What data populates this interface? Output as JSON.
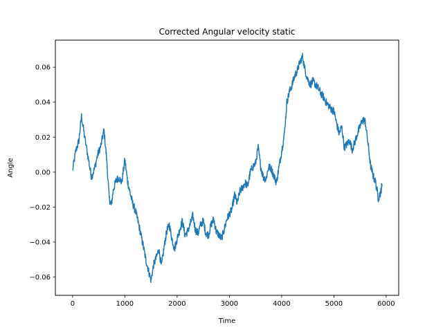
{
  "chart_data": {
    "type": "line",
    "title": "Corrected Angular velocity static",
    "xlabel": "Time",
    "ylabel": "Angle",
    "xlim": [
      -330,
      6240
    ],
    "ylim": [
      -0.0705,
      0.0755
    ],
    "grid": false,
    "legend": "none",
    "x_ticks": [
      0,
      1000,
      2000,
      3000,
      4000,
      5000,
      6000
    ],
    "x_tick_labels": [
      "0",
      "1000",
      "2000",
      "3000",
      "4000",
      "5000",
      "6000"
    ],
    "y_ticks": [
      -0.06,
      -0.04,
      -0.02,
      0.0,
      0.02,
      0.04,
      0.06
    ],
    "y_tick_labels": [
      "−0.06",
      "−0.04",
      "−0.02",
      "0.00",
      "0.02",
      "0.04",
      "0.06"
    ],
    "series": [
      {
        "color": "#1f77b4",
        "x": [
          0,
          60,
          120,
          170,
          230,
          300,
          360,
          420,
          480,
          540,
          600,
          650,
          700,
          740,
          780,
          830,
          880,
          940,
          1000,
          1050,
          1100,
          1150,
          1200,
          1250,
          1300,
          1350,
          1400,
          1450,
          1500,
          1550,
          1600,
          1650,
          1700,
          1750,
          1800,
          1850,
          1900,
          1950,
          2000,
          2050,
          2100,
          2150,
          2200,
          2250,
          2300,
          2350,
          2400,
          2450,
          2500,
          2550,
          2600,
          2650,
          2700,
          2750,
          2800,
          2850,
          2900,
          2950,
          3000,
          3050,
          3100,
          3150,
          3200,
          3250,
          3300,
          3350,
          3400,
          3450,
          3500,
          3550,
          3600,
          3650,
          3700,
          3750,
          3800,
          3850,
          3900,
          3950,
          4000,
          4050,
          4100,
          4150,
          4200,
          4250,
          4300,
          4350,
          4400,
          4450,
          4500,
          4550,
          4600,
          4650,
          4700,
          4750,
          4800,
          4850,
          4900,
          4950,
          5000,
          5050,
          5100,
          5150,
          5200,
          5250,
          5300,
          5350,
          5400,
          5450,
          5500,
          5550,
          5600,
          5650,
          5700,
          5750,
          5800,
          5850,
          5900,
          5920
        ],
        "y": [
          0.001,
          0.012,
          0.018,
          0.032,
          0.02,
          0.008,
          -0.003,
          0.002,
          0.01,
          0.015,
          0.024,
          0.008,
          -0.015,
          -0.019,
          -0.01,
          -0.005,
          -0.003,
          -0.006,
          0.007,
          -0.005,
          -0.012,
          -0.018,
          -0.022,
          -0.028,
          -0.035,
          -0.042,
          -0.05,
          -0.056,
          -0.062,
          -0.053,
          -0.049,
          -0.044,
          -0.054,
          -0.043,
          -0.034,
          -0.03,
          -0.038,
          -0.044,
          -0.038,
          -0.033,
          -0.028,
          -0.036,
          -0.034,
          -0.03,
          -0.025,
          -0.033,
          -0.035,
          -0.03,
          -0.028,
          -0.035,
          -0.036,
          -0.03,
          -0.027,
          -0.034,
          -0.036,
          -0.038,
          -0.033,
          -0.027,
          -0.024,
          -0.021,
          -0.013,
          -0.018,
          -0.011,
          -0.009,
          -0.006,
          -0.008,
          0.0,
          0.003,
          0.005,
          0.014,
          0.003,
          -0.003,
          -0.004,
          0.003,
          0.002,
          -0.002,
          -0.006,
          0.003,
          0.012,
          0.021,
          0.04,
          0.046,
          0.05,
          0.055,
          0.058,
          0.063,
          0.066,
          0.058,
          0.053,
          0.05,
          0.052,
          0.05,
          0.048,
          0.045,
          0.043,
          0.04,
          0.038,
          0.036,
          0.035,
          0.028,
          0.022,
          0.026,
          0.014,
          0.016,
          0.018,
          0.013,
          0.017,
          0.022,
          0.026,
          0.03,
          0.029,
          0.017,
          0.004,
          -0.002,
          -0.006,
          -0.015,
          -0.011,
          -0.007
        ]
      }
    ]
  }
}
